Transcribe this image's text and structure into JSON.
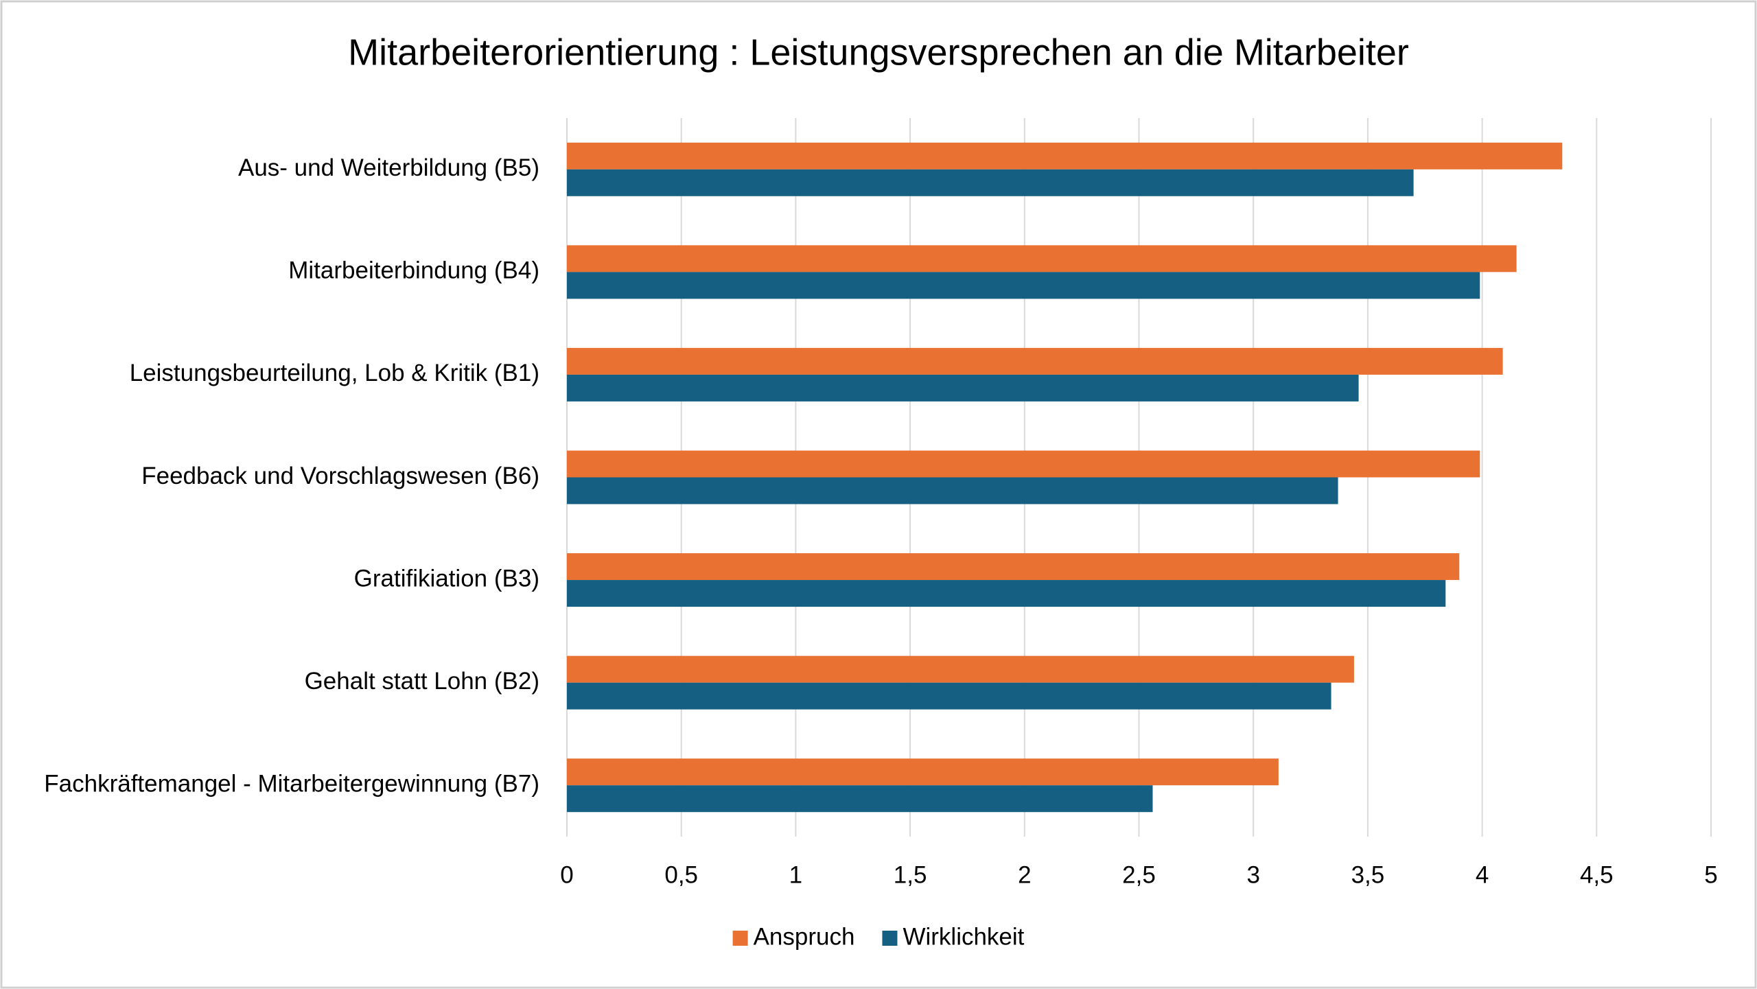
{
  "chart_data": {
    "type": "barh",
    "title": "Mitarbeiterorientierung : Leistungsversprechen an die Mitarbeiter",
    "categories": [
      "Aus- und Weiterbildung (B5)",
      "Mitarbeiterbindung (B4)",
      "Leistungsbeurteilung, Lob & Kritik (B1)",
      "Feedback und Vorschlagswesen (B6)",
      "Gratifikiation (B3)",
      "Gehalt statt Lohn (B2)",
      "Fachkräftemangel - Mitarbeitergewinnung (B7)"
    ],
    "series": [
      {
        "name": "Anspruch",
        "color": "#e97132",
        "values": [
          4.35,
          4.15,
          4.09,
          3.99,
          3.9,
          3.44,
          3.11
        ]
      },
      {
        "name": "Wirklichkeit",
        "color": "#156082",
        "values": [
          3.7,
          3.99,
          3.46,
          3.37,
          3.84,
          3.34,
          2.56
        ]
      }
    ],
    "xlim": [
      0,
      5
    ],
    "xticks": [
      0,
      {
        "value": 0.5,
        "label": "0,5"
      },
      1,
      {
        "value": 1.5,
        "label": "1,5"
      },
      2,
      {
        "value": 2.5,
        "label": "2,5"
      },
      3,
      {
        "value": 3.5,
        "label": "3,5"
      },
      4,
      {
        "value": 4.5,
        "label": "4,5"
      },
      5
    ],
    "grid": true,
    "legend": "bottom"
  }
}
